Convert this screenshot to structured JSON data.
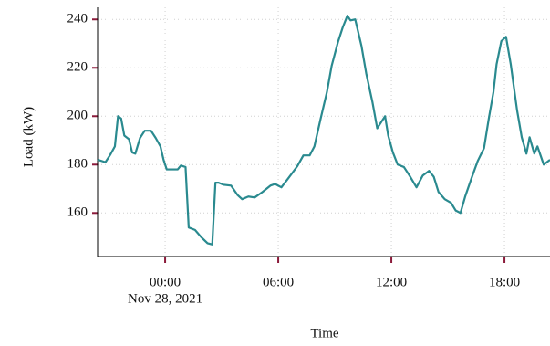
{
  "chart_data": {
    "type": "line",
    "x_label": "Time",
    "y_label": "Load (kW)",
    "x_date_label": "Nov 28, 2021",
    "xlim": [
      "2021-11-27 20:25",
      "2021-11-28 20:25"
    ],
    "xticks": [
      {
        "value": "2021-11-28 00:00",
        "label": "00:00"
      },
      {
        "value": "2021-11-28 06:00",
        "label": "06:00"
      },
      {
        "value": "2021-11-28 12:00",
        "label": "12:00"
      },
      {
        "value": "2021-11-28 18:00",
        "label": "18:00"
      }
    ],
    "ylim": [
      142,
      245
    ],
    "yticks": [
      160,
      180,
      200,
      220,
      240
    ],
    "grid": true,
    "x": [
      "2021-11-27 20:25",
      "2021-11-27 20:50",
      "2021-11-27 21:05",
      "2021-11-27 21:20",
      "2021-11-27 21:30",
      "2021-11-27 21:40",
      "2021-11-27 21:50",
      "2021-11-27 22:05",
      "2021-11-27 22:15",
      "2021-11-27 22:25",
      "2021-11-27 22:40",
      "2021-11-27 22:55",
      "2021-11-27 23:15",
      "2021-11-27 23:30",
      "2021-11-27 23:45",
      "2021-11-27 23:55",
      "2021-11-28 00:05",
      "2021-11-28 00:40",
      "2021-11-28 00:50",
      "2021-11-28 01:05",
      "2021-11-28 01:15",
      "2021-11-28 01:35",
      "2021-11-28 01:55",
      "2021-11-28 02:15",
      "2021-11-28 02:30",
      "2021-11-28 02:40",
      "2021-11-28 02:50",
      "2021-11-28 03:05",
      "2021-11-28 03:30",
      "2021-11-28 03:50",
      "2021-11-28 04:05",
      "2021-11-28 04:25",
      "2021-11-28 04:45",
      "2021-11-28 05:10",
      "2021-11-28 05:35",
      "2021-11-28 05:50",
      "2021-11-28 06:10",
      "2021-11-28 06:30",
      "2021-11-28 07:00",
      "2021-11-28 07:20",
      "2021-11-28 07:40",
      "2021-11-28 07:55",
      "2021-11-28 08:15",
      "2021-11-28 08:35",
      "2021-11-28 08:50",
      "2021-11-28 09:10",
      "2021-11-28 09:25",
      "2021-11-28 09:40",
      "2021-11-28 09:50",
      "2021-11-28 10:05",
      "2021-11-28 10:25",
      "2021-11-28 10:40",
      "2021-11-28 11:00",
      "2021-11-28 11:15",
      "2021-11-28 11:30",
      "2021-11-28 11:40",
      "2021-11-28 11:50",
      "2021-11-28 12:05",
      "2021-11-28 12:20",
      "2021-11-28 12:40",
      "2021-11-28 13:00",
      "2021-11-28 13:20",
      "2021-11-28 13:40",
      "2021-11-28 14:00",
      "2021-11-28 14:15",
      "2021-11-28 14:30",
      "2021-11-28 14:50",
      "2021-11-28 15:10",
      "2021-11-28 15:25",
      "2021-11-28 15:40",
      "2021-11-28 15:55",
      "2021-11-28 16:15",
      "2021-11-28 16:35",
      "2021-11-28 16:55",
      "2021-11-28 17:10",
      "2021-11-28 17:25",
      "2021-11-28 17:35",
      "2021-11-28 17:50",
      "2021-11-28 18:05",
      "2021-11-28 18:20",
      "2021-11-28 18:40",
      "2021-11-28 18:55",
      "2021-11-28 19:10",
      "2021-11-28 19:20",
      "2021-11-28 19:35",
      "2021-11-28 19:45",
      "2021-11-28 20:05",
      "2021-11-28 20:25"
    ],
    "series": [
      {
        "color": "#2a8a8f",
        "values": [
          182,
          181,
          184,
          187.5,
          200,
          199,
          192,
          190.5,
          185,
          184.5,
          191,
          194,
          194,
          191,
          187.5,
          182,
          178,
          178,
          179.6,
          179,
          154,
          153,
          150,
          147.5,
          147,
          172.5,
          172.5,
          171.7,
          171.3,
          167.5,
          165.7,
          166.8,
          166.4,
          168.7,
          171.3,
          172,
          170.6,
          174,
          179.2,
          183.8,
          183.8,
          187.5,
          199,
          210,
          220.8,
          230.6,
          236.6,
          241.5,
          239.6,
          240,
          229,
          217.7,
          205.7,
          195,
          198,
          200,
          192,
          185,
          180,
          179,
          175,
          170.6,
          175.5,
          177.4,
          175,
          168.7,
          165.7,
          164.2,
          161,
          160,
          166.8,
          174.3,
          181.5,
          186.8,
          198.9,
          210,
          221.5,
          231,
          232.8,
          221.5,
          202.6,
          191.3,
          184.5,
          191.3,
          184.5,
          187.5,
          180,
          182
        ]
      }
    ]
  }
}
